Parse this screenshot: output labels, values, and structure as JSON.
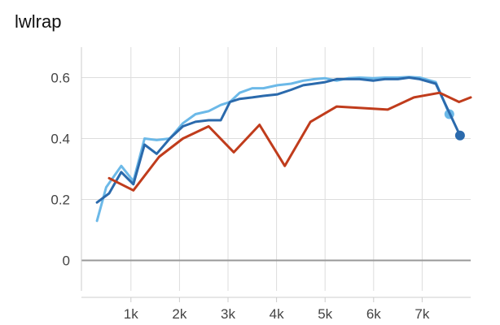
{
  "chart_data": {
    "type": "line",
    "title": "lwlrap",
    "xlabel": "",
    "ylabel": "",
    "xlim": [
      -20,
      8000
    ],
    "ylim": [
      -0.1,
      0.7
    ],
    "x_ticks": [
      1000,
      2000,
      3000,
      4000,
      5000,
      6000,
      7000
    ],
    "x_tick_labels": [
      "1k",
      "2k",
      "3k",
      "4k",
      "5k",
      "6k",
      "7k"
    ],
    "y_ticks": [
      0,
      0.2,
      0.4,
      0.6
    ],
    "y_tick_labels": [
      "0",
      "0.2",
      "0.4",
      "0.6"
    ],
    "grid": true,
    "series": [
      {
        "color": "#6cb9e8",
        "x": [
          300,
          490,
          800,
          1050,
          1280,
          1530,
          1800,
          2070,
          2330,
          2600,
          2850,
          3040,
          3240,
          3500,
          3730,
          4020,
          4300,
          4550,
          4780,
          5000,
          5240,
          5470,
          5710,
          5990,
          6230,
          6500,
          6730,
          6950,
          7280,
          7560
        ],
        "y": [
          0.13,
          0.24,
          0.31,
          0.26,
          0.4,
          0.395,
          0.4,
          0.45,
          0.48,
          0.49,
          0.51,
          0.52,
          0.55,
          0.565,
          0.565,
          0.575,
          0.58,
          0.59,
          0.595,
          0.598,
          0.59,
          0.598,
          0.6,
          0.598,
          0.6,
          0.6,
          0.602,
          0.6,
          0.585,
          0.48
        ],
        "end_marker": true
      },
      {
        "color": "#2b6aac",
        "x": [
          300,
          550,
          800,
          1050,
          1280,
          1530,
          1800,
          2070,
          2330,
          2600,
          2850,
          3040,
          3240,
          3500,
          3730,
          4020,
          4300,
          4550,
          4780,
          5000,
          5240,
          5470,
          5710,
          5990,
          6230,
          6500,
          6730,
          6950,
          7280,
          7780
        ],
        "y": [
          0.19,
          0.22,
          0.29,
          0.25,
          0.38,
          0.35,
          0.4,
          0.44,
          0.455,
          0.46,
          0.46,
          0.52,
          0.53,
          0.535,
          0.54,
          0.545,
          0.56,
          0.575,
          0.58,
          0.585,
          0.595,
          0.595,
          0.595,
          0.59,
          0.595,
          0.595,
          0.6,
          0.595,
          0.58,
          0.41
        ],
        "end_marker": true
      },
      {
        "color": "#c03c1c",
        "x": [
          550,
          1050,
          1580,
          2070,
          2600,
          3120,
          3650,
          4170,
          4700,
          5240,
          5770,
          6290,
          6830,
          7360,
          7760,
          8000
        ],
        "y": [
          0.27,
          0.23,
          0.34,
          0.4,
          0.44,
          0.355,
          0.445,
          0.31,
          0.455,
          0.505,
          0.5,
          0.495,
          0.535,
          0.55,
          0.52,
          0.535
        ],
        "end_marker": false
      }
    ]
  }
}
